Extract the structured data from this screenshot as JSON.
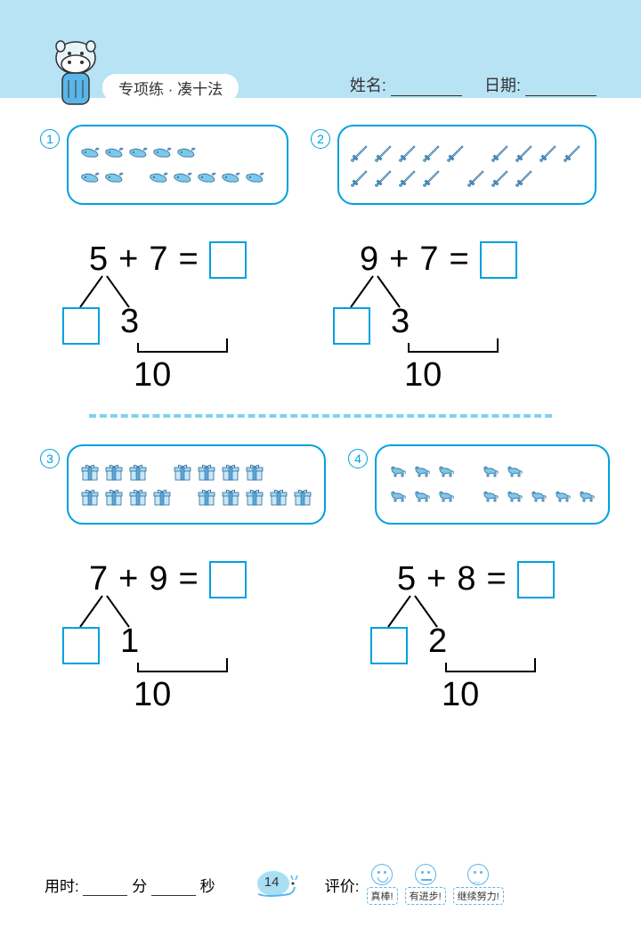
{
  "header": {
    "title": "专项练 · 凑十法",
    "name_label": "姓名:",
    "date_label": "日期:"
  },
  "colors": {
    "header_bg": "#b8e3f5",
    "accent": "#00a0e0",
    "icon": "#4a9fd8",
    "divider": "#7dd3f0"
  },
  "problems": [
    {
      "number": "1",
      "icon_type": "whale",
      "groups": [
        [
          5
        ],
        [
          2,
          5
        ]
      ],
      "equation": {
        "a": "5",
        "op": "+",
        "b": "7",
        "eq": "="
      },
      "split_shown": "3",
      "ten": "10"
    },
    {
      "number": "2",
      "icon_type": "sword",
      "groups": [
        [
          5,
          4
        ],
        [
          4,
          3
        ]
      ],
      "equation": {
        "a": "9",
        "op": "+",
        "b": "7",
        "eq": "="
      },
      "split_shown": "3",
      "ten": "10"
    },
    {
      "number": "3",
      "icon_type": "gift",
      "groups": [
        [
          3,
          4
        ],
        [
          4,
          5
        ]
      ],
      "equation": {
        "a": "7",
        "op": "+",
        "b": "9",
        "eq": "="
      },
      "split_shown": "1",
      "ten": "10"
    },
    {
      "number": "4",
      "icon_type": "horse",
      "groups": [
        [
          3,
          2
        ],
        [
          3,
          5
        ]
      ],
      "equation": {
        "a": "5",
        "op": "+",
        "b": "8",
        "eq": "="
      },
      "split_shown": "2",
      "ten": "10"
    }
  ],
  "footer": {
    "time_label": "用时:",
    "minute_label": "分",
    "second_label": "秒",
    "page_number": "14",
    "eval_label": "评价:",
    "ratings": [
      "真棒!",
      "有进步!",
      "继续努力!"
    ]
  }
}
